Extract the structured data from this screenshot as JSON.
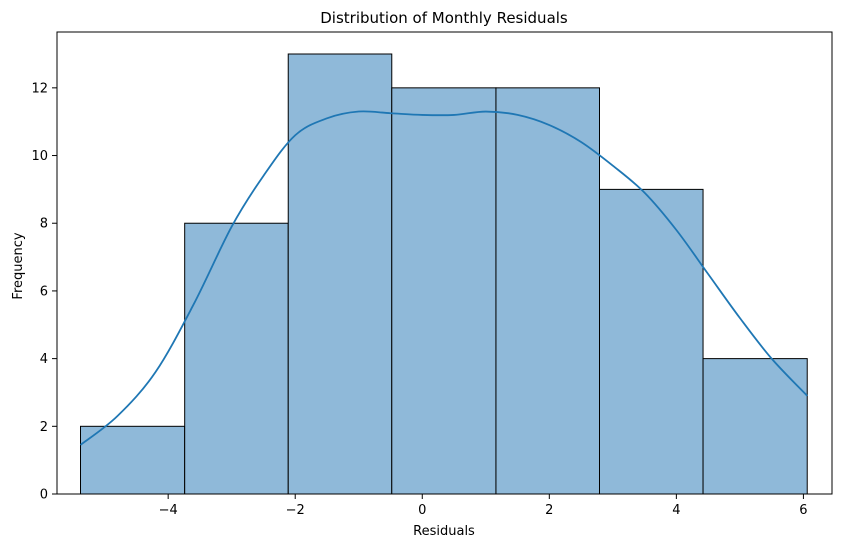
{
  "chart_data": {
    "type": "bar",
    "subtype": "histogram with density curve",
    "title": "Distribution of Monthly Residuals",
    "xlabel": "Residuals",
    "ylabel": "Frequency",
    "xlim": [
      -5.75,
      6.45
    ],
    "ylim": [
      0,
      13.65
    ],
    "xticks": [
      -4,
      -2,
      0,
      2,
      4,
      6
    ],
    "yticks": [
      0,
      2,
      4,
      6,
      8,
      10,
      12
    ],
    "xtick_labels": [
      "−4",
      "−2",
      "0",
      "2",
      "4",
      "6"
    ],
    "ytick_labels": [
      "0",
      "2",
      "4",
      "6",
      "8",
      "10",
      "12"
    ],
    "bins": [
      {
        "start": -5.38,
        "end": -3.74,
        "count": 2
      },
      {
        "start": -3.74,
        "end": -2.11,
        "count": 8
      },
      {
        "start": -2.11,
        "end": -0.48,
        "count": 13
      },
      {
        "start": -0.48,
        "end": 1.16,
        "count": 12
      },
      {
        "start": 1.16,
        "end": 2.79,
        "count": 12
      },
      {
        "start": 2.79,
        "end": 4.42,
        "count": 9
      },
      {
        "start": 4.42,
        "end": 6.06,
        "count": 4
      }
    ],
    "density_curve": {
      "x": [
        -5.38,
        -4.8,
        -4.2,
        -3.6,
        -3.0,
        -2.5,
        -2.0,
        -1.5,
        -1.0,
        -0.5,
        0.0,
        0.5,
        1.0,
        1.5,
        2.0,
        2.5,
        3.0,
        3.5,
        4.0,
        4.5,
        5.0,
        5.5,
        6.06
      ],
      "y": [
        1.45,
        2.3,
        3.6,
        5.6,
        7.9,
        9.4,
        10.6,
        11.1,
        11.3,
        11.25,
        11.2,
        11.2,
        11.3,
        11.2,
        10.9,
        10.4,
        9.7,
        8.9,
        7.8,
        6.5,
        5.2,
        4.0,
        2.9
      ]
    },
    "grid": false,
    "legend": "none",
    "colors": {
      "bar_fill": "#8fb9d9",
      "bar_edge": "#000000",
      "curve": "#1f77b4",
      "axes": "#000000"
    }
  }
}
